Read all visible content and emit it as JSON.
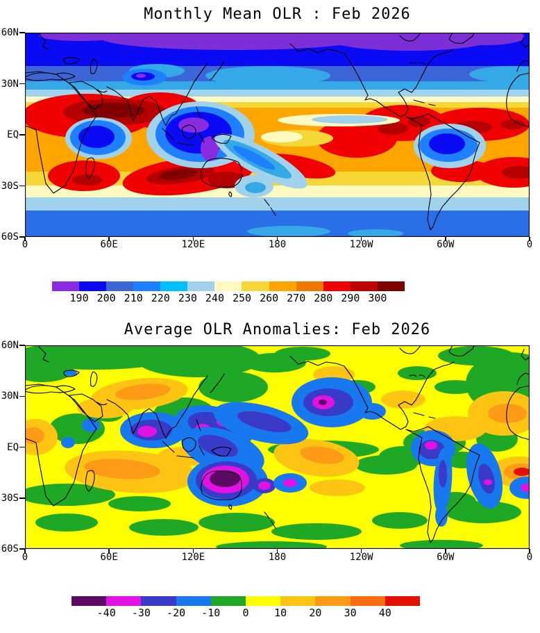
{
  "page": {
    "background": "#ffffff"
  },
  "panels": [
    {
      "id": "mean-olr",
      "title": "Monthly Mean OLR : Feb 2026",
      "lat_ticks": [
        "60N",
        "30N",
        "EQ",
        "30S",
        "60S"
      ],
      "lon_ticks": [
        "0",
        "60E",
        "120E",
        "180",
        "120W",
        "60W",
        "0"
      ],
      "colorbar": {
        "labels": [
          "190",
          "200",
          "210",
          "220",
          "230",
          "240",
          "250",
          "260",
          "270",
          "280",
          "290",
          "300"
        ],
        "colors": [
          "#8a2be2",
          "#0a0af5",
          "#3c66d8",
          "#1e7fff",
          "#00bfff",
          "#a0d2eb",
          "#fffac2",
          "#f5d838",
          "#ffa500",
          "#f07800",
          "#f00000",
          "#c00000",
          "#800000"
        ]
      }
    },
    {
      "id": "olr-anomalies",
      "title": "Average OLR Anomalies: Feb 2026",
      "lat_ticks": [
        "60N",
        "30N",
        "EQ",
        "30S",
        "60S"
      ],
      "lon_ticks": [
        "0",
        "60E",
        "120E",
        "180",
        "120W",
        "60W",
        "0"
      ],
      "colorbar": {
        "labels": [
          "-40",
          "-30",
          "-20",
          "-10",
          "0",
          "10",
          "20",
          "30",
          "40"
        ],
        "colors": [
          "#5c0a64",
          "#e411e4",
          "#3a3ac8",
          "#1878f0",
          "#1fa826",
          "#ffff00",
          "#fdc413",
          "#fd9a16",
          "#fb6b10",
          "#e21000"
        ]
      }
    }
  ],
  "chart_data": [
    {
      "type": "heatmap",
      "title": "Monthly Mean OLR : Feb 2026",
      "x_ticks": [
        "0",
        "60E",
        "120E",
        "180",
        "120W",
        "60W",
        "0"
      ],
      "y_ticks": [
        "60N",
        "30N",
        "EQ",
        "30S",
        "60S"
      ],
      "x_range_deg_lon": [
        0,
        360
      ],
      "y_range_deg_lat": [
        -60,
        60
      ],
      "grid": false,
      "legend_position": "bottom",
      "levels": [
        190,
        200,
        210,
        220,
        230,
        240,
        250,
        260,
        270,
        280,
        290,
        300
      ],
      "palette": [
        "#8a2be2",
        "#0a0af5",
        "#3c66d8",
        "#1e7fff",
        "#00bfff",
        "#a0d2eb",
        "#fffac2",
        "#f5d838",
        "#ffa500",
        "#f07800",
        "#f00000",
        "#c00000",
        "#800000"
      ],
      "notable_features": [
        "Low OLR (190-220, purple/blue) across high northern latitudes 45-60N",
        "Very high OLR (290-300+, dark red) over the Sahara, Arabian Peninsula, Arabian Sea and northwest India",
        "Deep-convection minima (OLR below 220, locally below 200) over the Congo basin, the Maritime Continent and the Amazon basin",
        "High OLR (270-290, red) over the Caribbean, tropical Atlantic, eastern Pacific dry zone, south Indian Ocean, southern Africa and south Atlantic",
        "Transition bands (230-250, cream/light blue) along mid-latitude storm tracks near 35N and 35-50S"
      ]
    },
    {
      "type": "heatmap",
      "title": "Average OLR Anomalies: Feb 2026",
      "x_ticks": [
        "0",
        "60E",
        "120E",
        "180",
        "120W",
        "60W",
        "0"
      ],
      "y_ticks": [
        "60N",
        "30N",
        "EQ",
        "30S",
        "60S"
      ],
      "x_range_deg_lon": [
        0,
        360
      ],
      "y_range_deg_lat": [
        -60,
        60
      ],
      "grid": false,
      "legend_position": "bottom",
      "levels": [
        -40,
        -30,
        -20,
        -10,
        0,
        10,
        20,
        30,
        40
      ],
      "palette": [
        "#5c0a64",
        "#e411e4",
        "#3a3ac8",
        "#1878f0",
        "#1fa826",
        "#ffff00",
        "#fdc413",
        "#fd9a16",
        "#fb6b10",
        "#e21000"
      ],
      "notable_features": [
        "Strong negative anomaly (below -40, magenta/dark-purple core) centered over Australia",
        "Negative anomalies (-20 to -40) over southern India / Bay of Bengal, the Philippine Sea, the central North Pacific near 30N, Colombia/Panama, the Andes and eastern Brazil",
        "Positive anomalies (+10 to +30, orange) over the Middle East / central Asia, the subtropical south Indian Ocean, the subtropical North Atlantic and the far-eastern South Atlantic",
        "Near-zero to weakly positive anomalies (yellow, 0 to +10) over most remaining regions with scattered weak negatives (green, -10 to 0)"
      ]
    }
  ]
}
